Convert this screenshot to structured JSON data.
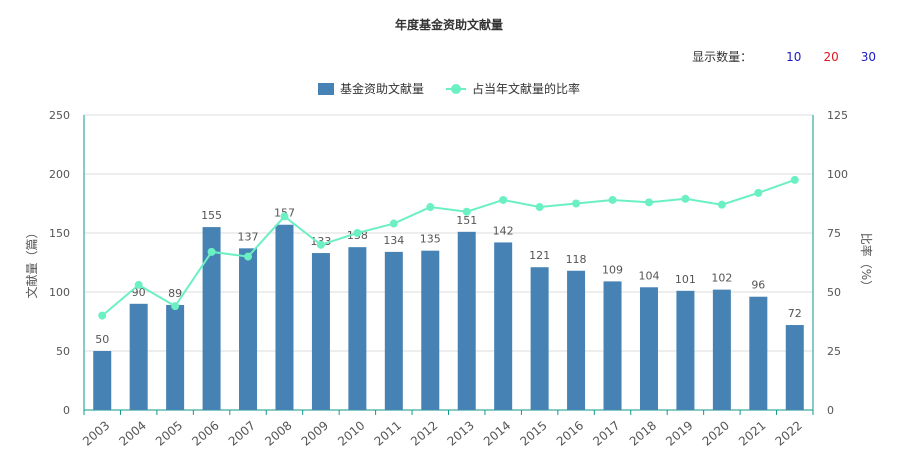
{
  "title": "年度基金资助文献量",
  "display_count": {
    "label": "显示数量：",
    "options": [
      {
        "value": "10",
        "color": "#1a1ac8"
      },
      {
        "value": "20",
        "color": "#e0161e"
      },
      {
        "value": "30",
        "color": "#1a1ac8"
      }
    ]
  },
  "colors": {
    "bar": "#4682b4",
    "line": "#6bf0c4",
    "grid": "#dddddd",
    "axis": "#0f9a8a",
    "text": "#555555"
  },
  "chart_data": {
    "type": "bar",
    "title": "年度基金资助文献量",
    "categories": [
      "2003",
      "2004",
      "2005",
      "2006",
      "2007",
      "2008",
      "2009",
      "2010",
      "2011",
      "2012",
      "2013",
      "2014",
      "2015",
      "2016",
      "2017",
      "2018",
      "2019",
      "2020",
      "2021",
      "2022"
    ],
    "ylabel": "文献量（篇）",
    "ylabel_right": "比率（%）",
    "ylim": [
      0,
      250
    ],
    "ylim_right": [
      0,
      125
    ],
    "yticks": [
      "0",
      "50",
      "100",
      "150",
      "200",
      "250"
    ],
    "yticks_right": [
      "0",
      "25",
      "50",
      "75",
      "100",
      "125"
    ],
    "legend_position": "top-center",
    "grid": true,
    "series": [
      {
        "name": "基金资助文献量",
        "type": "bar",
        "axis": "left",
        "values": [
          50,
          90,
          89,
          155,
          137,
          157,
          133,
          138,
          134,
          135,
          151,
          142,
          121,
          118,
          109,
          104,
          101,
          102,
          96,
          72
        ]
      },
      {
        "name": "占当年文献量的比率",
        "type": "line",
        "axis": "right",
        "values": [
          40,
          53,
          44,
          67,
          65,
          82,
          70,
          75,
          79,
          86,
          84,
          89,
          86,
          87.5,
          89,
          88,
          89.5,
          87,
          92,
          97.5
        ]
      }
    ]
  }
}
